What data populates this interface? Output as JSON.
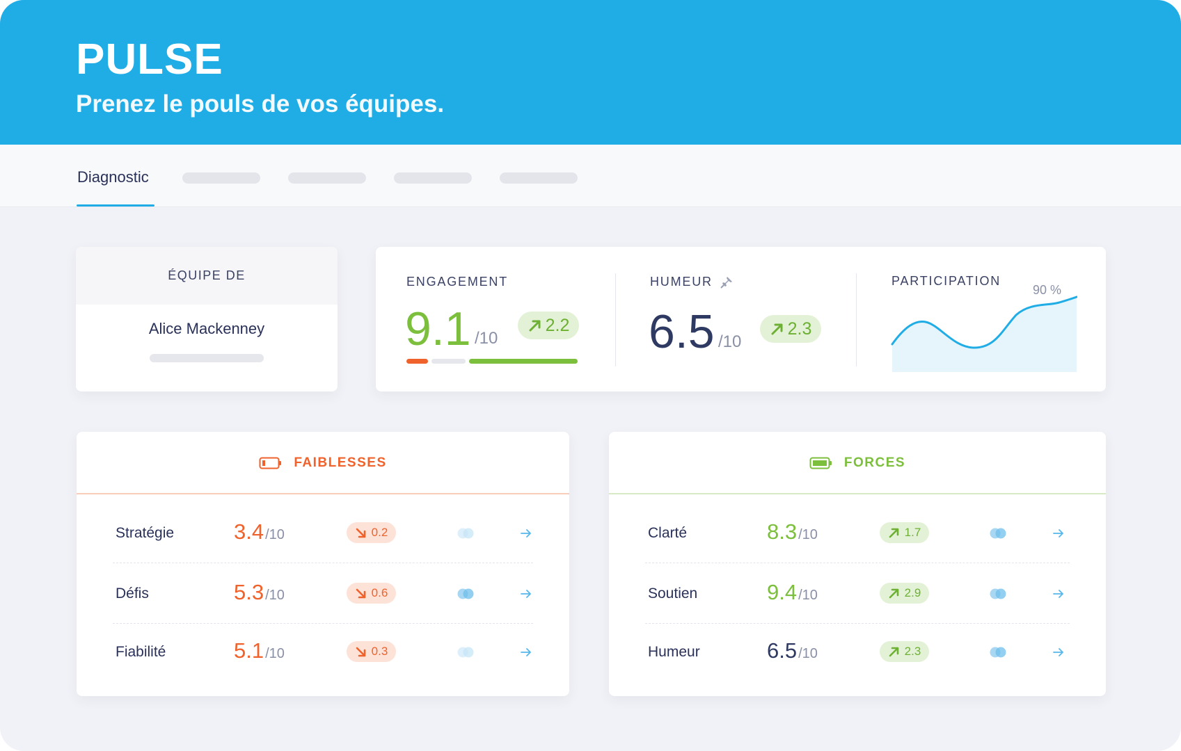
{
  "header": {
    "title": "PULSE",
    "subtitle": "Prenez le pouls de vos équipes."
  },
  "tabs": {
    "active_label": "Diagnostic",
    "placeholder_count": 4
  },
  "team": {
    "label": "ÉQUIPE DE",
    "name": "Alice Mackenney"
  },
  "engagement": {
    "label": "ENGAGEMENT",
    "score": "9.1",
    "denominator": "/10",
    "delta": "2.2",
    "delta_direction": "up"
  },
  "mood": {
    "label": "HUMEUR",
    "score": "6.5",
    "denominator": "/10",
    "delta": "2.3",
    "delta_direction": "up",
    "icon": "pin-icon"
  },
  "participation": {
    "label": "PARTICIPATION",
    "value_label": "90 %",
    "value": 90
  },
  "weaknesses": {
    "title": "FAIBLESSES",
    "icon": "battery-low-icon",
    "color": "#f0622c",
    "rows": [
      {
        "label": "Stratégie",
        "score": "3.4",
        "den": "/10",
        "delta": "0.2",
        "direction": "down"
      },
      {
        "label": "Défis",
        "score": "5.3",
        "den": "/10",
        "delta": "0.6",
        "direction": "down"
      },
      {
        "label": "Fiabilité",
        "score": "5.1",
        "den": "/10",
        "delta": "0.3",
        "direction": "down"
      }
    ]
  },
  "strengths": {
    "title": "FORCES",
    "icon": "battery-full-icon",
    "color": "#7cbf3d",
    "rows": [
      {
        "label": "Clarté",
        "score": "8.3",
        "den": "/10",
        "delta": "1.7",
        "direction": "up"
      },
      {
        "label": "Soutien",
        "score": "9.4",
        "den": "/10",
        "delta": "2.9",
        "direction": "up"
      },
      {
        "label": "Humeur",
        "score": "6.5",
        "den": "/10",
        "delta": "2.3",
        "direction": "up"
      }
    ]
  },
  "colors": {
    "brand": "#20ade6",
    "positive": "#7cbf3d",
    "negative": "#f0622c",
    "navy": "#2f3a62"
  }
}
